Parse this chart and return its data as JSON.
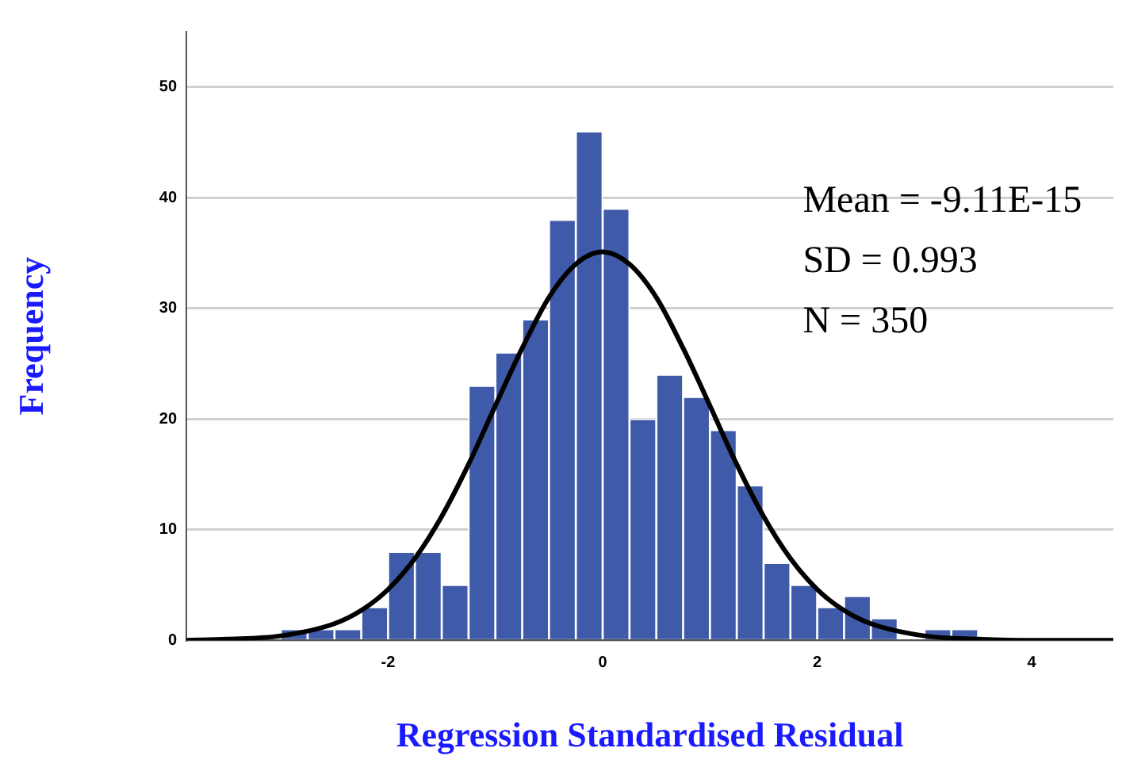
{
  "chart_data": {
    "type": "histogram",
    "xlabel": "Regression Standardised Residual",
    "ylabel": "Frequency",
    "bins": [
      -3,
      -2.75,
      -2.5,
      -2.25,
      -2,
      -1.75,
      -1.5,
      -1.25,
      -1,
      -0.75,
      -0.5,
      -0.25,
      0,
      0.25,
      0.5,
      0.75,
      1,
      1.25,
      1.5,
      1.75,
      2,
      2.25,
      2.5,
      2.75,
      3,
      3.25,
      3.5
    ],
    "values": [
      1,
      1,
      1,
      3,
      8,
      8,
      5,
      23,
      26,
      29,
      38,
      46,
      39,
      20,
      24,
      22,
      19,
      14,
      7,
      5,
      3,
      4,
      2,
      0,
      1,
      1
    ],
    "color": "#3f5aa8",
    "series": [
      {
        "type": "line",
        "color": "#000000",
        "x": [
          -3.88,
          -3.5,
          -3,
          -2.5,
          -2.25,
          -2,
          -1.75,
          -1.5,
          -1.25,
          -1,
          -0.75,
          -0.5,
          -0.25,
          0,
          0.25,
          0.5,
          0.75,
          1,
          1.25,
          1.5,
          1.75,
          2,
          2.25,
          2.5,
          3,
          3.5,
          4,
          4.76
        ],
        "values": [
          0,
          0.1,
          0.4,
          1.5,
          2.7,
          4.6,
          7.4,
          11.2,
          15.9,
          21.2,
          26.4,
          31,
          34,
          35.1,
          34,
          31,
          26.4,
          21.2,
          15.9,
          11.2,
          7.4,
          4.6,
          2.7,
          1.5,
          0.4,
          0.1,
          0,
          0
        ]
      }
    ],
    "xlim": [
      -3.88,
      4.76
    ],
    "xticks": [
      -2,
      0,
      2,
      4
    ],
    "ylim": [
      0,
      55
    ],
    "yticks": [
      0,
      10,
      20,
      30,
      40,
      50
    ],
    "grid": "y",
    "legend": false,
    "marker": "none",
    "line_style": "solid",
    "annotations": [
      "Mean = -9.11E-15",
      "SD = 0.993",
      "N = 350"
    ]
  }
}
